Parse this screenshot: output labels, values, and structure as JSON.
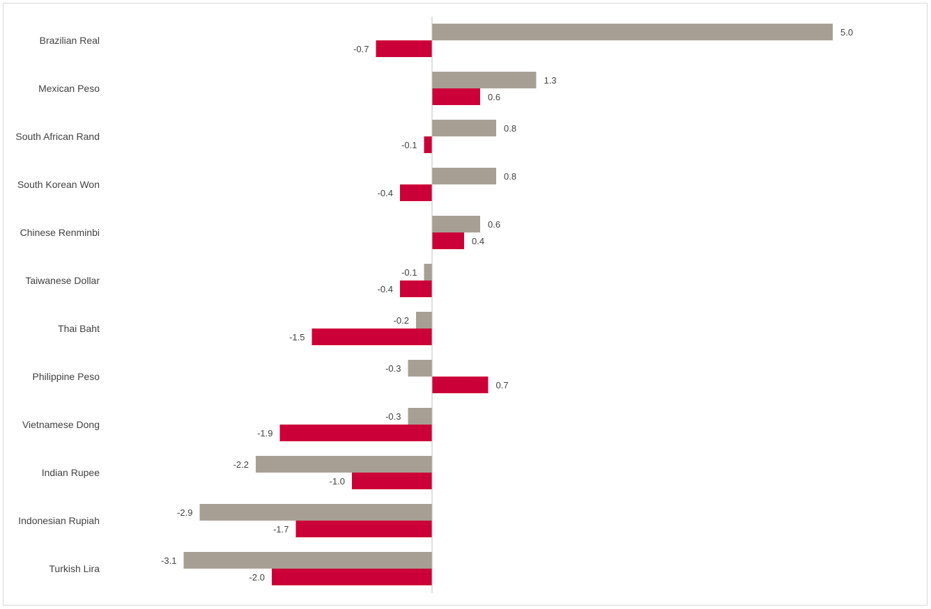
{
  "colors": {
    "series_a": "#a89f94",
    "series_b": "#cc0038",
    "axis": "#bfbfbf",
    "label": "#404040"
  },
  "chart_data": {
    "type": "bar",
    "orientation": "horizontal",
    "title": "",
    "xlabel": "",
    "ylabel": "",
    "xlim": [
      -3.1,
      5.0
    ],
    "grid": false,
    "legend": "none",
    "categories": [
      "Brazilian Real",
      "Mexican Peso",
      "South African Rand",
      "South Korean Won",
      "Chinese Renminbi",
      "Taiwanese Dollar",
      "Thai Baht",
      "Philippine Peso",
      "Vietnamese Dong",
      "Indian Rupee",
      "Indonesian Rupiah",
      "Turkish Lira"
    ],
    "series": [
      {
        "color": "#a89f94",
        "values": [
          5.0,
          1.3,
          0.8,
          0.8,
          0.6,
          -0.1,
          -0.2,
          -0.3,
          -0.3,
          -2.2,
          -2.9,
          -3.1
        ],
        "labels": [
          "5.0",
          "1.3",
          "0.8",
          "0.8",
          "0.6",
          "-0.1",
          "-0.2",
          "-0.3",
          "-0.3",
          "-2.2",
          "-2.9",
          "-3.1"
        ]
      },
      {
        "color": "#cc0038",
        "values": [
          -0.7,
          0.6,
          -0.1,
          -0.4,
          0.4,
          -0.4,
          -1.5,
          0.7,
          -1.9,
          -1.0,
          -1.7,
          -2.0
        ],
        "labels": [
          "-0.7",
          "0.6",
          "-0.1",
          "-0.4",
          "0.4",
          "-0.4",
          "-1.5",
          "0.7",
          "-1.9",
          "-1.0",
          "-1.7",
          "-2.0"
        ]
      }
    ]
  }
}
